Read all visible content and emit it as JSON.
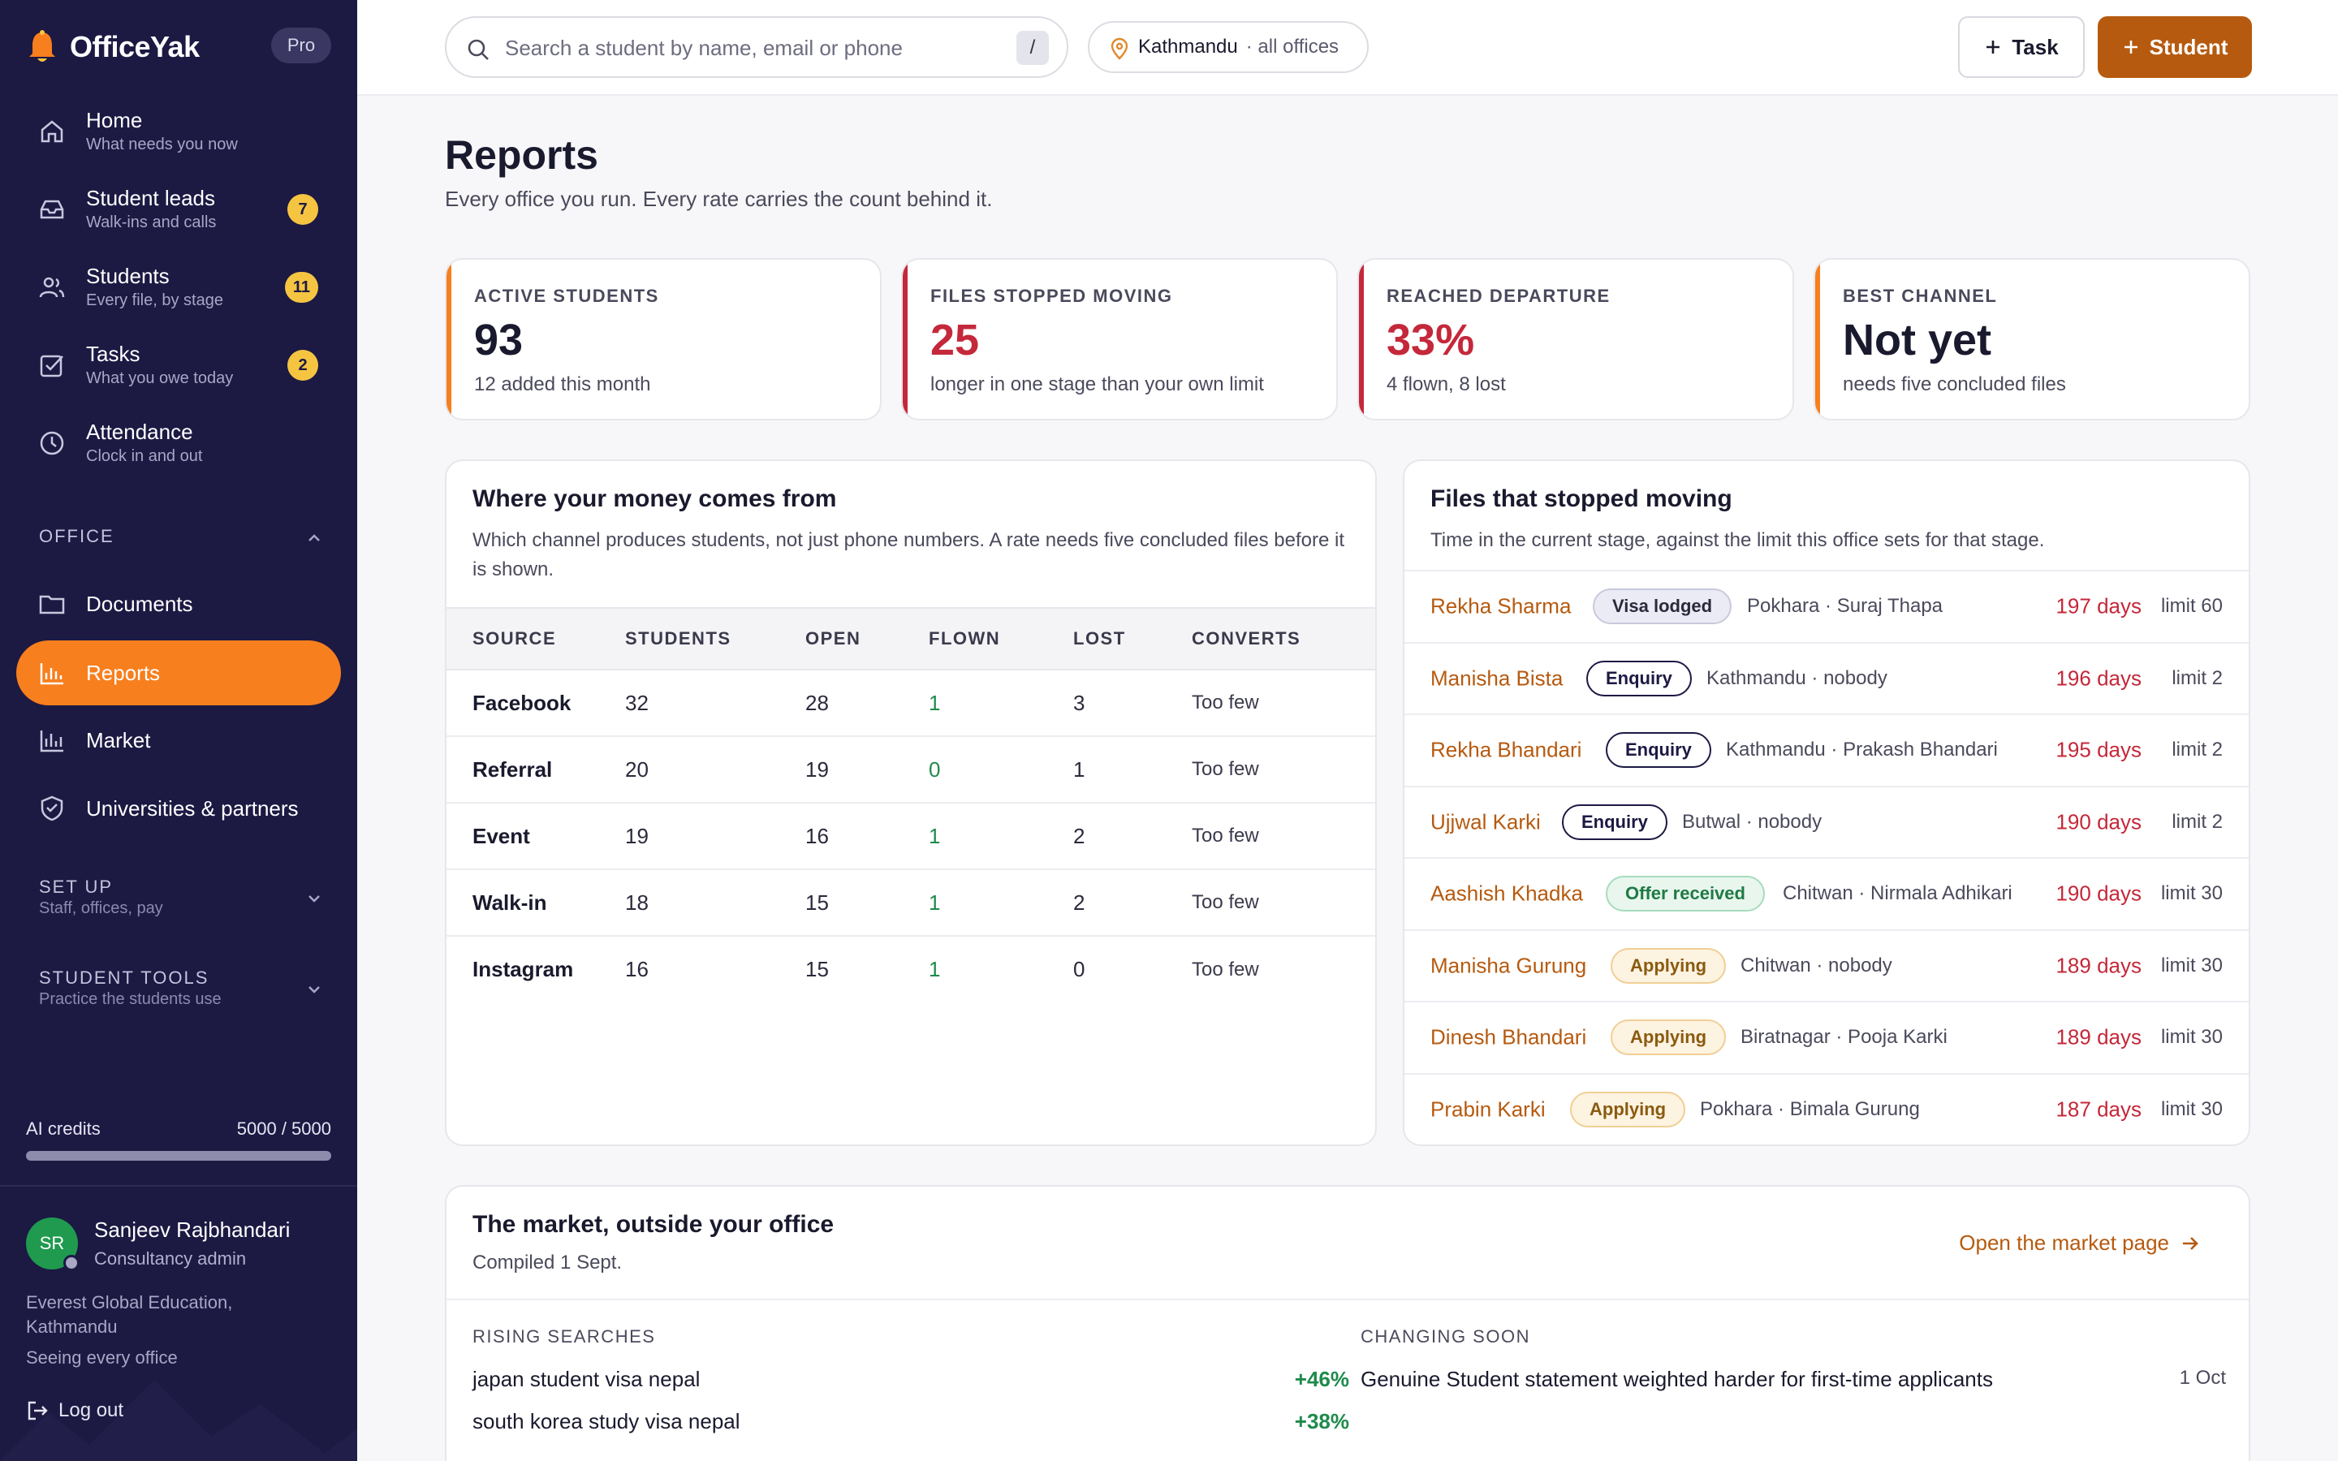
{
  "app": {
    "brand": "OfficeYak",
    "plan_badge": "Pro"
  },
  "sidebar": {
    "items": [
      {
        "label": "Home",
        "sub": "What needs you now",
        "icon": "home-icon"
      },
      {
        "label": "Student leads",
        "sub": "Walk-ins and calls",
        "icon": "inbox-icon",
        "count": "7"
      },
      {
        "label": "Students",
        "sub": "Every file, by stage",
        "icon": "users-icon",
        "count": "11"
      },
      {
        "label": "Tasks",
        "sub": "What you owe today",
        "icon": "checkbox-icon",
        "count": "2"
      },
      {
        "label": "Attendance",
        "sub": "Clock in and out",
        "icon": "clock-icon"
      }
    ],
    "office_section": {
      "heading": "OFFICE",
      "items": [
        {
          "label": "Documents",
          "icon": "folder-icon"
        },
        {
          "label": "Reports",
          "icon": "bar-chart-icon",
          "active": true
        },
        {
          "label": "Market",
          "icon": "bar-chart-outline-icon"
        },
        {
          "label": "Universities & partners",
          "icon": "shield-icon"
        }
      ]
    },
    "setup_section": {
      "heading": "SET UP",
      "sub": "Staff, offices, pay"
    },
    "tools_section": {
      "heading": "STUDENT TOOLS",
      "sub": "Practice the students use"
    },
    "credits": {
      "label": "AI credits",
      "value": "5000 / 5000",
      "fraction": 1.0
    },
    "user": {
      "initials": "SR",
      "name": "Sanjeev Rajbhandari",
      "role": "Consultancy admin"
    },
    "org": "Everest Global Education, Kathmandu",
    "scope": "Seeing every office",
    "logout": "Log out"
  },
  "topbar": {
    "search_placeholder": "Search a student by name, email or phone",
    "search_shortcut": "/",
    "location": "Kathmandu",
    "location_sub": "· all offices",
    "task_button": "Task",
    "student_button": "Student"
  },
  "page": {
    "title": "Reports",
    "subtitle": "Every office you run. Every rate carries the count behind it."
  },
  "kpis": [
    {
      "label": "ACTIVE STUDENTS",
      "value": "93",
      "note": "12 added this month",
      "color": "#1a1a2e",
      "accent": "#f77f1e"
    },
    {
      "label": "FILES STOPPED MOVING",
      "value": "25",
      "note": "longer in one stage than your own limit",
      "color": "#c4283a",
      "accent": "#c4283a"
    },
    {
      "label": "REACHED DEPARTURE",
      "value": "33%",
      "note": "4 flown, 8 lost",
      "color": "#c4283a",
      "accent": "#c4283a"
    },
    {
      "label": "BEST CHANNEL",
      "value": "Not yet",
      "note": "needs five concluded files",
      "color": "#1a1a2e",
      "accent": "#f77f1e"
    }
  ],
  "money": {
    "title": "Where your money comes from",
    "desc": "Which channel produces students, not just phone numbers. A rate needs five concluded files before it is shown.",
    "headers": [
      "SOURCE",
      "STUDENTS",
      "OPEN",
      "FLOWN",
      "LOST",
      "CONVERTS"
    ],
    "rows": [
      [
        "Facebook",
        "32",
        "28",
        "1",
        "3",
        "Too few"
      ],
      [
        "Referral",
        "20",
        "19",
        "0",
        "1",
        "Too few"
      ],
      [
        "Event",
        "19",
        "16",
        "1",
        "2",
        "Too few"
      ],
      [
        "Walk-in",
        "18",
        "15",
        "1",
        "2",
        "Too few"
      ],
      [
        "Instagram",
        "16",
        "15",
        "1",
        "0",
        "Too few"
      ]
    ]
  },
  "stopped": {
    "title": "Files that stopped moving",
    "desc": "Time in the current stage, against the limit this office sets for that stage.",
    "rows": [
      {
        "name": "Rekha Sharma",
        "stage": "Visa lodged",
        "kind": "visa",
        "who": "Pokhara · Suraj Thapa",
        "days": "197 days",
        "limit": "limit 60"
      },
      {
        "name": "Manisha Bista",
        "stage": "Enquiry",
        "kind": "enq",
        "who": "Kathmandu · nobody",
        "days": "196 days",
        "limit": "limit 2"
      },
      {
        "name": "Rekha Bhandari",
        "stage": "Enquiry",
        "kind": "enq",
        "who": "Kathmandu · Prakash Bhandari",
        "days": "195 days",
        "limit": "limit 2"
      },
      {
        "name": "Ujjwal Karki",
        "stage": "Enquiry",
        "kind": "enq",
        "who": "Butwal · nobody",
        "days": "190 days",
        "limit": "limit 2"
      },
      {
        "name": "Aashish Khadka",
        "stage": "Offer received",
        "kind": "offer",
        "who": "Chitwan · Nirmala Adhikari",
        "days": "190 days",
        "limit": "limit 30"
      },
      {
        "name": "Manisha Gurung",
        "stage": "Applying",
        "kind": "apply",
        "who": "Chitwan · nobody",
        "days": "189 days",
        "limit": "limit 30"
      },
      {
        "name": "Dinesh Bhandari",
        "stage": "Applying",
        "kind": "apply",
        "who": "Biratnagar · Pooja Karki",
        "days": "189 days",
        "limit": "limit 30"
      },
      {
        "name": "Prabin Karki",
        "stage": "Applying",
        "kind": "apply",
        "who": "Pokhara · Bimala Gurung",
        "days": "187 days",
        "limit": "limit 30"
      }
    ]
  },
  "market": {
    "title": "The market, outside your office",
    "compiled": "Compiled 1 Sept.",
    "link": "Open the market page",
    "rising_heading": "RISING SEARCHES",
    "rising": [
      {
        "term": "japan student visa nepal",
        "change": "+46%"
      },
      {
        "term": "south korea study visa nepal",
        "change": "+38%"
      }
    ],
    "changing_heading": "CHANGING SOON",
    "changing": [
      {
        "text": "Genuine Student statement weighted harder for first-time applicants",
        "date": "1 Oct"
      }
    ]
  }
}
